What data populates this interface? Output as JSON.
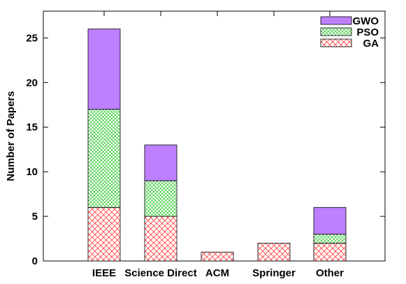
{
  "chart_data": {
    "type": "bar",
    "stacked": true,
    "categories": [
      "IEEE",
      "Science Direct",
      "ACM",
      "Springer",
      "Other"
    ],
    "series": [
      {
        "name": "GA",
        "values": [
          6,
          5,
          1,
          2,
          2
        ],
        "color": "#ff0000",
        "fill": "crosshatch"
      },
      {
        "name": "PSO",
        "values": [
          11,
          4,
          0,
          0,
          1
        ],
        "color": "#00cc00",
        "fill": "crosshatch"
      },
      {
        "name": "GWO",
        "values": [
          9,
          4,
          0,
          0,
          3
        ],
        "color": "#bf80ff",
        "fill": "solid"
      }
    ],
    "title": "",
    "xlabel": "",
    "ylabel": "Number of Papers",
    "ylim": [
      0,
      28
    ],
    "yticks": [
      0,
      5,
      10,
      15,
      20,
      25
    ],
    "grid": false,
    "legend_position": "top-right"
  }
}
